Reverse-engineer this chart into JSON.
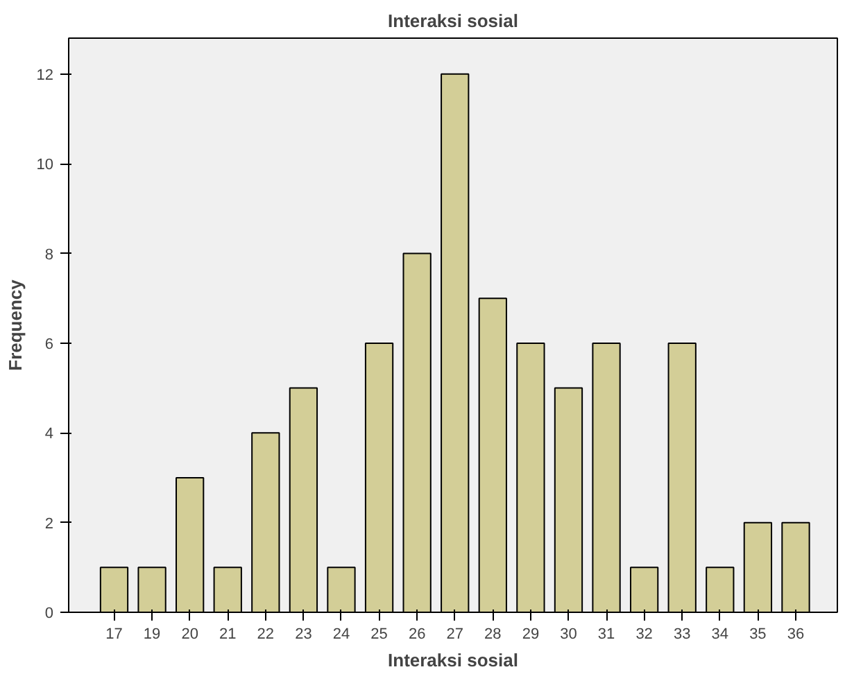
{
  "chart_data": {
    "type": "bar",
    "title": "Interaksi sosial",
    "xlabel": "Interaksi sosial",
    "ylabel": "Frequency",
    "categories": [
      "17",
      "19",
      "20",
      "21",
      "22",
      "23",
      "24",
      "25",
      "26",
      "27",
      "28",
      "29",
      "30",
      "31",
      "32",
      "33",
      "34",
      "35",
      "36"
    ],
    "values": [
      1,
      1,
      3,
      1,
      4,
      5,
      1,
      6,
      8,
      12,
      7,
      6,
      5,
      6,
      1,
      6,
      1,
      2,
      2
    ],
    "color": "#d3ce97",
    "ylim": [
      0,
      12.8
    ],
    "yticks": [
      0,
      2,
      4,
      6,
      8,
      10,
      12
    ],
    "grid": false
  }
}
